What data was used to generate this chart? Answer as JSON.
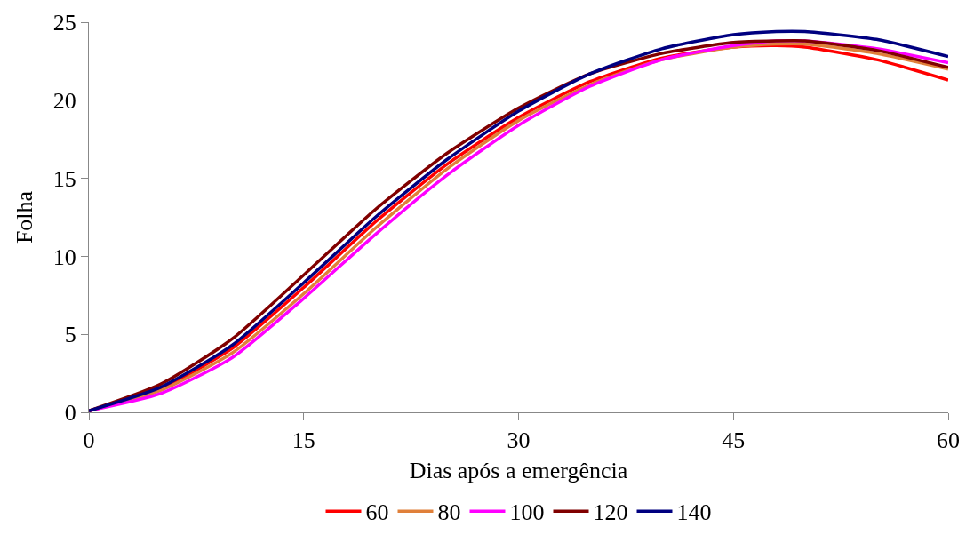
{
  "chart_data": {
    "type": "line",
    "xlabel": "Dias após a emergência",
    "ylabel": "Folha",
    "x": [
      0,
      5,
      10,
      15,
      20,
      25,
      30,
      35,
      40,
      45,
      48,
      50,
      55,
      60
    ],
    "xlim": [
      0,
      60
    ],
    "xticks": [
      0,
      15,
      30,
      45,
      60
    ],
    "ylim": [
      0,
      25
    ],
    "yticks": [
      0,
      5,
      10,
      15,
      20,
      25
    ],
    "grid": false,
    "legend": "bottom",
    "marker": "none",
    "line_style": "solid",
    "series": [
      {
        "name": "60",
        "color": "#ff0000",
        "values": [
          0.1,
          1.5,
          4.1,
          8.0,
          12.2,
          15.9,
          18.9,
          21.2,
          22.7,
          23.4,
          23.5,
          23.4,
          22.6,
          21.3
        ]
      },
      {
        "name": "80",
        "color": "#e0803a",
        "values": [
          0.1,
          1.4,
          3.8,
          7.6,
          11.8,
          15.6,
          18.7,
          21.0,
          22.6,
          23.4,
          23.6,
          23.6,
          23.0,
          22.0
        ]
      },
      {
        "name": "100",
        "color": "#ff00ff",
        "values": [
          0.1,
          1.2,
          3.5,
          7.3,
          11.4,
          15.2,
          18.4,
          20.9,
          22.6,
          23.5,
          23.8,
          23.8,
          23.3,
          22.4
        ]
      },
      {
        "name": "120",
        "color": "#800000",
        "values": [
          0.1,
          1.8,
          4.7,
          8.8,
          13.0,
          16.6,
          19.5,
          21.7,
          23.0,
          23.7,
          23.8,
          23.8,
          23.2,
          22.1
        ]
      },
      {
        "name": "140",
        "color": "#000080",
        "values": [
          0.1,
          1.6,
          4.3,
          8.3,
          12.5,
          16.2,
          19.3,
          21.7,
          23.3,
          24.2,
          24.4,
          24.4,
          23.9,
          22.8
        ]
      }
    ]
  }
}
